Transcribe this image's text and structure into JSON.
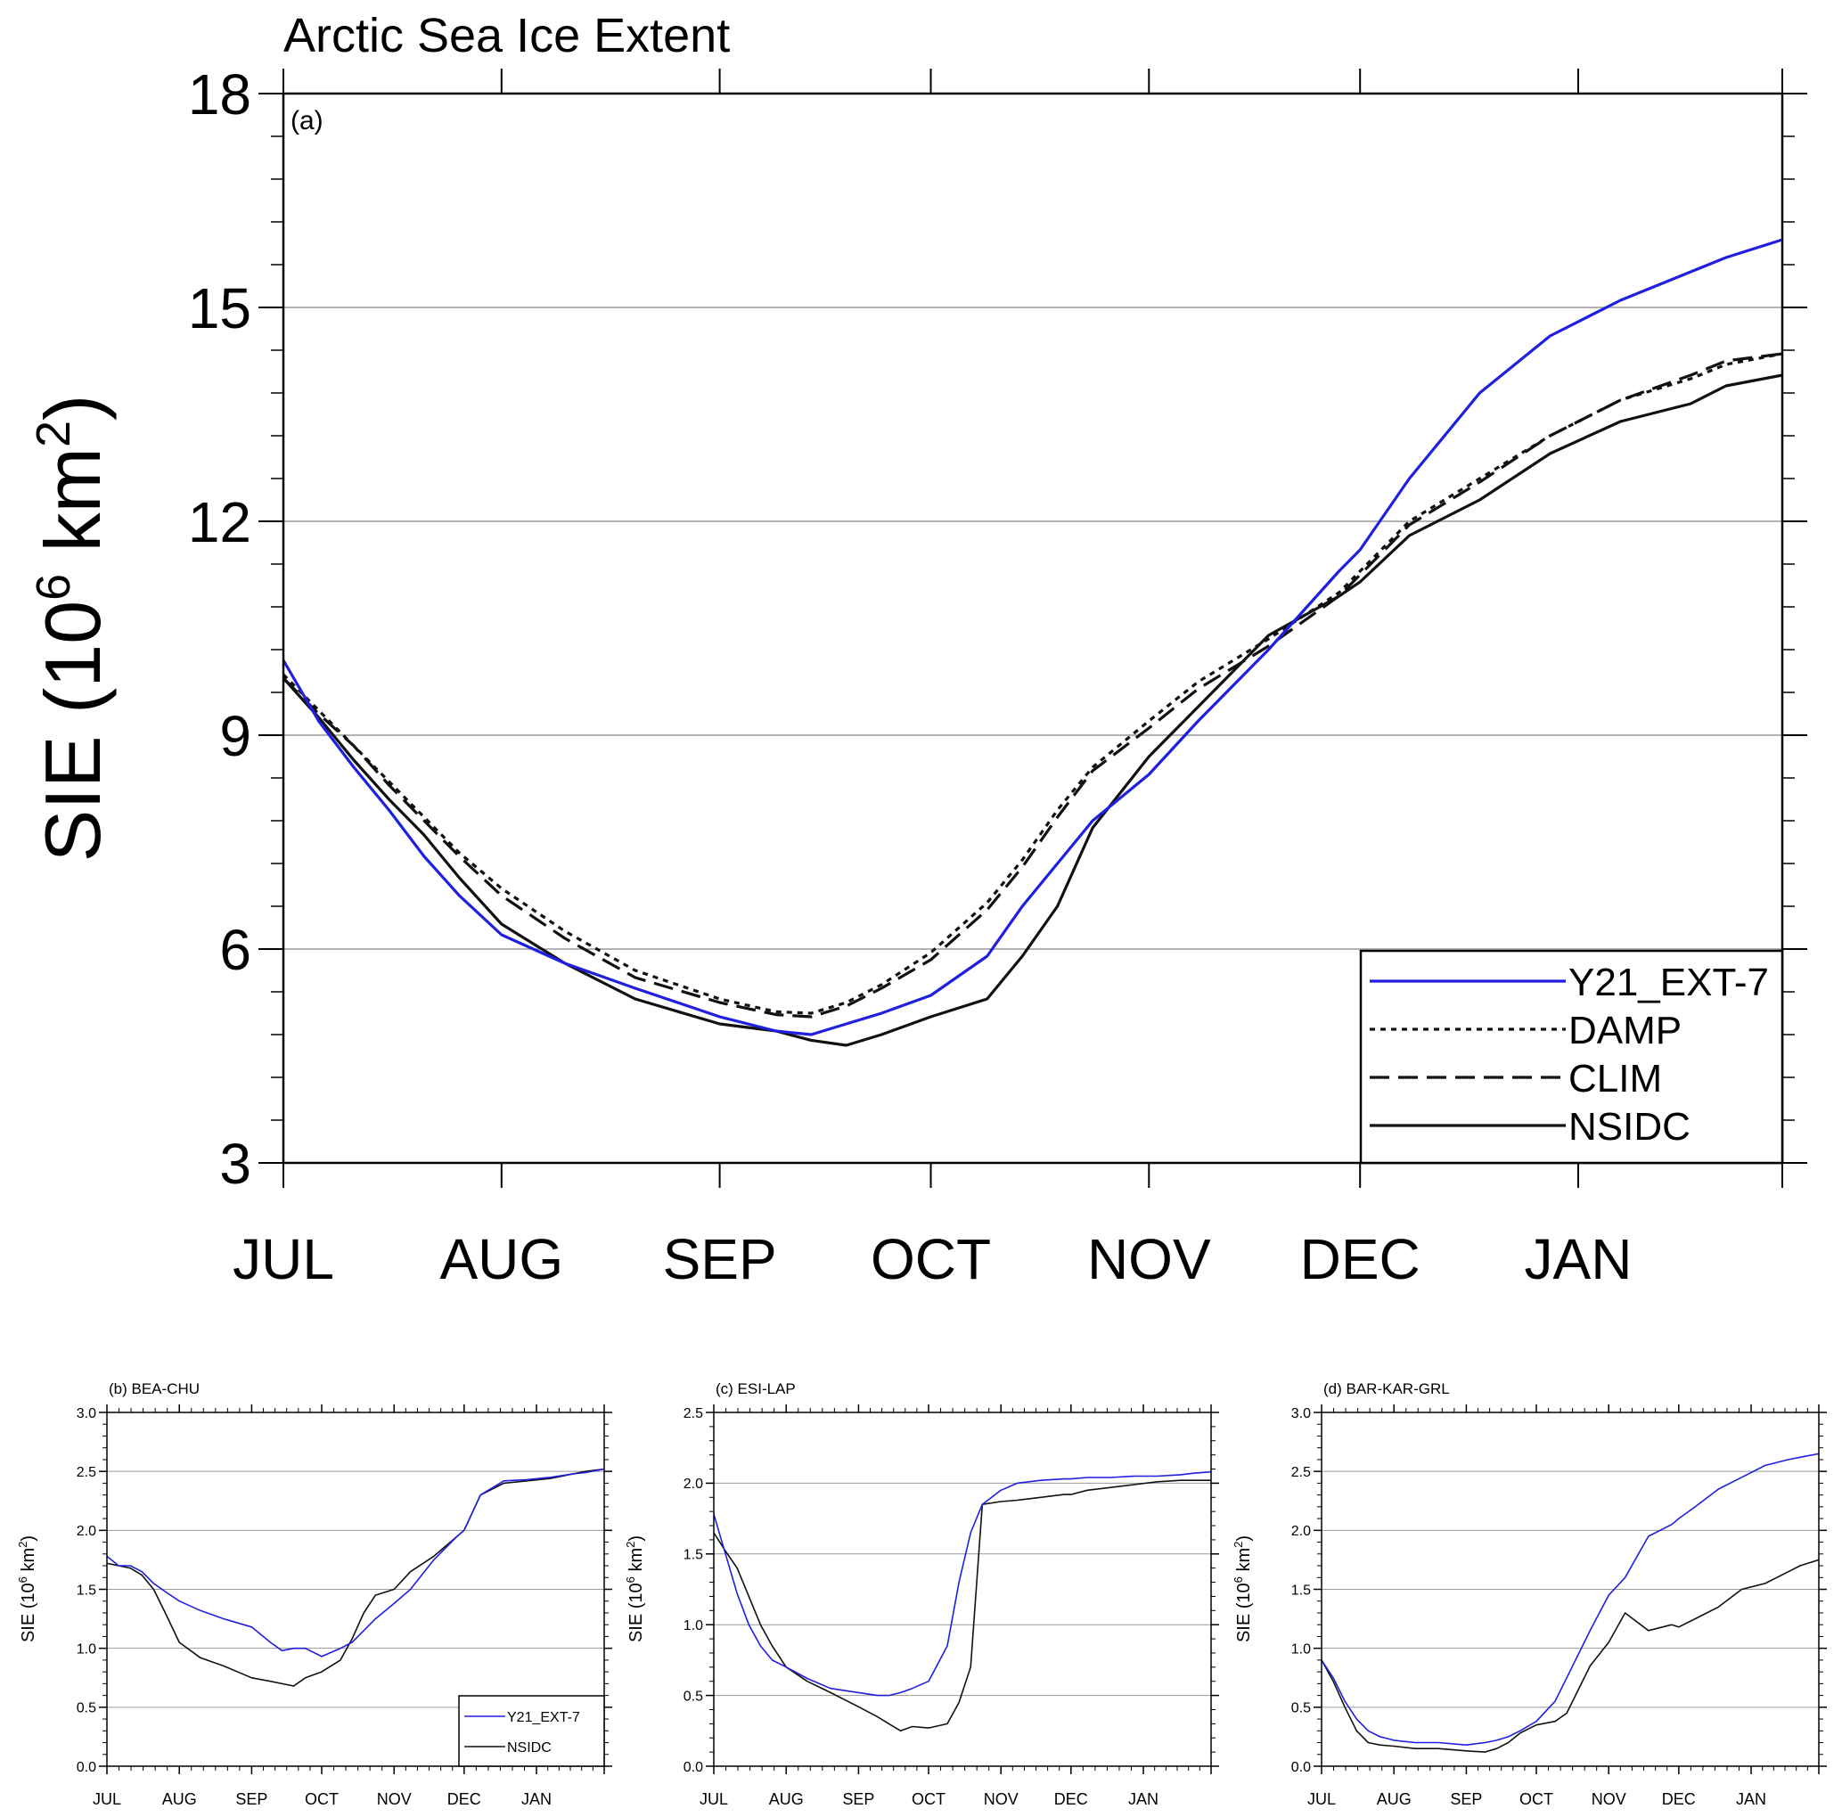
{
  "figure": {
    "month_labels": [
      "JUL",
      "AUG",
      "SEP",
      "OCT",
      "NOV",
      "DEC",
      "JAN"
    ],
    "colors": {
      "blue": "#1f1fe0",
      "black": "#111111",
      "grid": "#9a9a9a"
    }
  },
  "chart_data": [
    {
      "id": "a",
      "type": "line",
      "title": "Arctic Sea Ice Extent",
      "panel_label": "(a)",
      "ylabel": "SIE (10",
      "ylabel_sup": "6",
      "ylabel_tail": " km",
      "ylabel_sup2": "2",
      "ylabel_end": ")",
      "xlabel": "",
      "x_unit": "days since 1 JUL",
      "xlim": [
        0,
        213
      ],
      "ylim": [
        3,
        18
      ],
      "yticks": [
        3,
        6,
        9,
        12,
        15,
        18
      ],
      "grid": true,
      "legend_position": "bottom-right",
      "x": [
        0,
        5,
        10,
        15,
        20,
        25,
        31,
        40,
        50,
        62,
        70,
        75,
        80,
        85,
        92,
        100,
        105,
        110,
        115,
        123,
        130,
        140,
        150,
        153,
        160,
        170,
        180,
        190,
        200,
        205,
        213
      ],
      "series": [
        {
          "name": "Y21_EXT-7",
          "style": "solid",
          "color": "#1f1fe0",
          "values": [
            10.05,
            9.2,
            8.55,
            7.95,
            7.3,
            6.75,
            6.2,
            5.8,
            5.45,
            5.05,
            4.85,
            4.8,
            4.95,
            5.1,
            5.35,
            5.9,
            6.6,
            7.2,
            7.8,
            8.45,
            9.2,
            10.2,
            11.3,
            11.6,
            12.6,
            13.8,
            14.6,
            15.1,
            15.5,
            15.7,
            15.95
          ]
        },
        {
          "name": "DAMP",
          "style": "dotted",
          "color": "#111111",
          "values": [
            9.85,
            9.35,
            8.85,
            8.35,
            7.85,
            7.35,
            6.85,
            6.25,
            5.7,
            5.3,
            5.12,
            5.1,
            5.25,
            5.5,
            5.95,
            6.65,
            7.25,
            7.95,
            8.55,
            9.2,
            9.75,
            10.35,
            11.0,
            11.3,
            12.0,
            12.6,
            13.2,
            13.7,
            14.0,
            14.2,
            14.35
          ]
        },
        {
          "name": "CLIM",
          "style": "dashed",
          "color": "#111111",
          "values": [
            9.8,
            9.3,
            8.85,
            8.3,
            7.8,
            7.3,
            6.75,
            6.15,
            5.6,
            5.25,
            5.08,
            5.05,
            5.2,
            5.45,
            5.85,
            6.55,
            7.15,
            7.85,
            8.5,
            9.1,
            9.65,
            10.25,
            10.95,
            11.25,
            11.95,
            12.55,
            13.2,
            13.7,
            14.05,
            14.25,
            14.35
          ]
        },
        {
          "name": "NSIDC",
          "style": "solid",
          "color": "#111111",
          "values": [
            9.8,
            9.25,
            8.65,
            8.1,
            7.6,
            7.0,
            6.35,
            5.8,
            5.3,
            4.95,
            4.85,
            4.72,
            4.65,
            4.8,
            5.05,
            5.3,
            5.9,
            6.6,
            7.7,
            8.7,
            9.4,
            10.4,
            10.95,
            11.15,
            11.8,
            12.3,
            12.95,
            13.4,
            13.65,
            13.9,
            14.05
          ]
        }
      ]
    },
    {
      "id": "b",
      "type": "line",
      "title": "(b) BEA-CHU",
      "ylabel": "SIE (10",
      "ylabel_sup": "6",
      "ylabel_tail": " km",
      "ylabel_sup2": "2",
      "ylabel_end": ")",
      "x_unit": "days since 1 JUL",
      "xlim": [
        0,
        213
      ],
      "ylim": [
        0,
        3
      ],
      "yticks": [
        "0.0",
        "0.5",
        "1.0",
        "1.5",
        "2.0",
        "2.5",
        "3.0"
      ],
      "grid": true,
      "legend_position": "bottom-right",
      "x": [
        0,
        5,
        10,
        15,
        20,
        25,
        31,
        40,
        50,
        62,
        70,
        75,
        80,
        85,
        92,
        100,
        105,
        110,
        115,
        123,
        130,
        140,
        150,
        153,
        160,
        170,
        180,
        190,
        200,
        205,
        213
      ],
      "series": [
        {
          "name": "Y21_EXT-7",
          "style": "solid",
          "color": "#1f1fe0",
          "values": [
            1.78,
            1.7,
            1.7,
            1.65,
            1.55,
            1.48,
            1.4,
            1.32,
            1.25,
            1.18,
            1.05,
            0.98,
            1.0,
            1.0,
            0.93,
            1.0,
            1.05,
            1.15,
            1.25,
            1.38,
            1.5,
            1.75,
            1.95,
            2.0,
            2.3,
            2.42,
            2.43,
            2.45,
            2.48,
            2.49,
            2.52
          ]
        },
        {
          "name": "NSIDC",
          "style": "solid",
          "color": "#111111",
          "values": [
            1.72,
            1.7,
            1.68,
            1.62,
            1.5,
            1.3,
            1.05,
            0.92,
            0.85,
            0.75,
            0.72,
            0.7,
            0.68,
            0.75,
            0.8,
            0.9,
            1.08,
            1.3,
            1.45,
            1.5,
            1.65,
            1.78,
            1.95,
            2.0,
            2.3,
            2.4,
            2.42,
            2.44,
            2.48,
            2.5,
            2.52
          ]
        }
      ]
    },
    {
      "id": "c",
      "type": "line",
      "title": "(c) ESI-LAP",
      "ylabel": "SIE (10",
      "ylabel_sup": "6",
      "ylabel_tail": " km",
      "ylabel_sup2": "2",
      "ylabel_end": ")",
      "x_unit": "days since 1 JUL",
      "xlim": [
        0,
        213
      ],
      "ylim": [
        0,
        2.5
      ],
      "yticks": [
        "0.0",
        "0.5",
        "1.0",
        "1.5",
        "2.0",
        "2.5"
      ],
      "grid": true,
      "x": [
        0,
        5,
        10,
        15,
        20,
        25,
        31,
        40,
        50,
        62,
        70,
        75,
        80,
        85,
        92,
        100,
        105,
        110,
        115,
        123,
        130,
        140,
        150,
        153,
        160,
        170,
        180,
        190,
        200,
        205,
        213
      ],
      "series": [
        {
          "name": "Y21_EXT-7",
          "style": "solid",
          "color": "#1f1fe0",
          "values": [
            1.78,
            1.5,
            1.22,
            1.0,
            0.85,
            0.75,
            0.7,
            0.62,
            0.55,
            0.52,
            0.5,
            0.5,
            0.52,
            0.55,
            0.6,
            0.85,
            1.3,
            1.65,
            1.85,
            1.95,
            2.0,
            2.02,
            2.03,
            2.03,
            2.04,
            2.04,
            2.05,
            2.05,
            2.06,
            2.07,
            2.08
          ]
        },
        {
          "name": "NSIDC",
          "style": "solid",
          "color": "#111111",
          "values": [
            1.65,
            1.52,
            1.4,
            1.2,
            1.0,
            0.85,
            0.7,
            0.6,
            0.52,
            0.42,
            0.35,
            0.3,
            0.25,
            0.28,
            0.27,
            0.3,
            0.45,
            0.7,
            1.85,
            1.87,
            1.88,
            1.9,
            1.92,
            1.92,
            1.95,
            1.97,
            1.99,
            2.01,
            2.02,
            2.02,
            2.02
          ]
        }
      ]
    },
    {
      "id": "d",
      "type": "line",
      "title": "(d) BAR-KAR-GRL",
      "ylabel": "SIE (10",
      "ylabel_sup": "6",
      "ylabel_tail": " km",
      "ylabel_sup2": "2",
      "ylabel_end": ")",
      "x_unit": "days since 1 JUL",
      "xlim": [
        0,
        213
      ],
      "ylim": [
        0,
        3
      ],
      "yticks": [
        "0.0",
        "0.5",
        "1.0",
        "1.5",
        "2.0",
        "2.5",
        "3.0"
      ],
      "grid": true,
      "x": [
        0,
        5,
        10,
        15,
        20,
        25,
        31,
        40,
        50,
        62,
        70,
        75,
        80,
        85,
        92,
        100,
        105,
        110,
        115,
        123,
        130,
        140,
        150,
        153,
        160,
        170,
        180,
        190,
        200,
        205,
        213
      ],
      "series": [
        {
          "name": "Y21_EXT-7",
          "style": "solid",
          "color": "#1f1fe0",
          "values": [
            0.9,
            0.75,
            0.55,
            0.4,
            0.3,
            0.25,
            0.22,
            0.2,
            0.2,
            0.18,
            0.2,
            0.22,
            0.25,
            0.3,
            0.38,
            0.55,
            0.75,
            0.95,
            1.15,
            1.45,
            1.6,
            1.95,
            2.05,
            2.1,
            2.2,
            2.35,
            2.45,
            2.55,
            2.6,
            2.62,
            2.65
          ]
        },
        {
          "name": "NSIDC",
          "style": "solid",
          "color": "#111111",
          "values": [
            0.9,
            0.72,
            0.5,
            0.3,
            0.2,
            0.18,
            0.17,
            0.15,
            0.15,
            0.13,
            0.12,
            0.15,
            0.2,
            0.28,
            0.35,
            0.38,
            0.45,
            0.65,
            0.85,
            1.05,
            1.3,
            1.15,
            1.2,
            1.18,
            1.25,
            1.35,
            1.5,
            1.55,
            1.65,
            1.7,
            1.75
          ]
        }
      ]
    }
  ]
}
